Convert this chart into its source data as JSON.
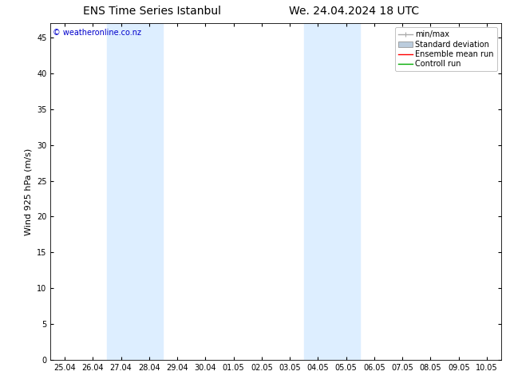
{
  "title_left": "ENS Time Series Istanbul",
  "title_right": "We. 24.04.2024 18 UTC",
  "ylabel": "Wind 925 hPa (m/s)",
  "watermark": "© weatheronline.co.nz",
  "ylim": [
    0,
    47
  ],
  "yticks": [
    0,
    5,
    10,
    15,
    20,
    25,
    30,
    35,
    40,
    45
  ],
  "xtick_labels": [
    "25.04",
    "26.04",
    "27.04",
    "28.04",
    "29.04",
    "30.04",
    "01.05",
    "02.05",
    "03.05",
    "04.05",
    "05.05",
    "06.05",
    "07.05",
    "08.05",
    "09.05",
    "10.05"
  ],
  "shaded_regions_idx": [
    {
      "xi0": 2,
      "xi1": 4,
      "color": "#ddeeff"
    },
    {
      "xi0": 9,
      "xi1": 11,
      "color": "#ddeeff"
    }
  ],
  "background_color": "#ffffff",
  "plot_bg_color": "#ffffff",
  "legend_entries": [
    {
      "label": "min/max"
    },
    {
      "label": "Standard deviation"
    },
    {
      "label": "Ensemble mean run"
    },
    {
      "label": "Controll run"
    }
  ],
  "legend_line_colors": [
    "#aaaaaa",
    "#bbccdd",
    "#ff0000",
    "#00aa00"
  ],
  "title_fontsize": 10,
  "tick_fontsize": 7,
  "legend_fontsize": 7,
  "ylabel_fontsize": 8,
  "watermark_color": "#0000cc",
  "watermark_fontsize": 7
}
